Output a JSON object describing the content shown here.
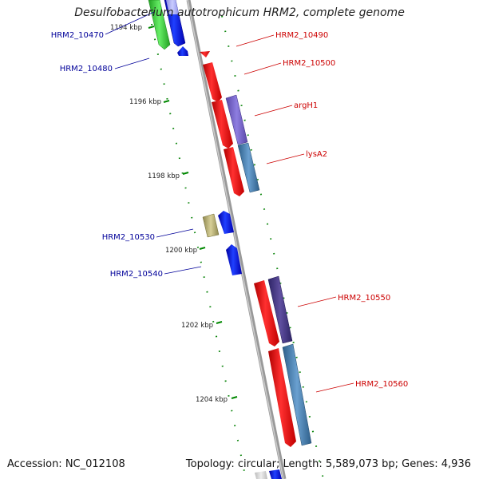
{
  "title": "Desulfobacterium autotrophicum HRM2, complete genome",
  "accession": "Accession: NC_012108",
  "summary": "Topology: circular; Length: 5,589,073 bp; Genes: 4,936",
  "ticks": [
    "1194 kbp",
    "1196 kbp",
    "1198 kbp",
    "1200 kbp",
    "1202 kbp",
    "1204 kbp"
  ],
  "gene_labels": {
    "forward": [
      "HRM2_10490",
      "HRM2_10500",
      "argH1",
      "lysA2",
      "HRM2_10550",
      "HRM2_10560"
    ],
    "reverse": [
      "HRM2_10470",
      "HRM2_10480",
      "HRM2_10530",
      "HRM2_10540"
    ]
  },
  "colors": {
    "forward_gene": "#ff0000",
    "reverse_gene": "#0000ff",
    "backbone": "#888888",
    "tick": "#006600",
    "forward_label": "#cc0000",
    "reverse_label": "#000099",
    "cog_purple": "#7b68c8",
    "cog_dark_purple": "#4a3a8a",
    "cog_steel_blue": "#4682b4",
    "cog_green": "#33cc33",
    "cog_khaki": "#b8b070"
  }
}
